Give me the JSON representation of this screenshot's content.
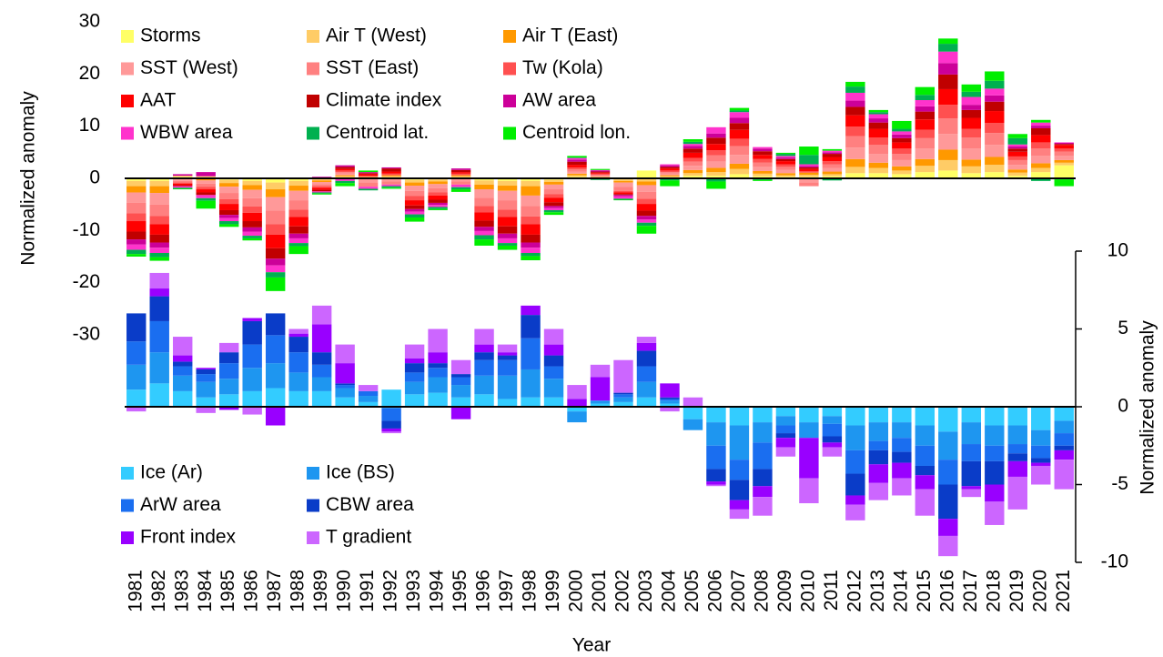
{
  "chart_data": {
    "type": "bar",
    "stacked": true,
    "x_label": "Year",
    "y_label": "Normalized anomaly",
    "y2_label": "Normalized anomaly",
    "categories": [
      "1981",
      "1982",
      "1983",
      "1984",
      "1985",
      "1986",
      "1987",
      "1988",
      "1989",
      "1990",
      "1991",
      "1992",
      "1993",
      "1994",
      "1995",
      "1996",
      "1997",
      "1998",
      "1999",
      "2000",
      "2001",
      "2002",
      "2003",
      "2004",
      "2005",
      "2006",
      "2007",
      "2008",
      "2009",
      "2010",
      "2011",
      "2012",
      "2013",
      "2014",
      "2015",
      "2016",
      "2017",
      "2018",
      "2019",
      "2020",
      "2021"
    ],
    "ylim": [
      -30,
      30
    ],
    "yticks": [
      -30,
      -20,
      -10,
      0,
      10,
      20,
      30
    ],
    "y2lim": [
      -10,
      10
    ],
    "y2ticks": [
      -10,
      -5,
      0,
      5,
      10
    ],
    "series": [
      {
        "name": "Storms",
        "color": "#ffff66",
        "values": [
          -0.5,
          -0.5,
          0.3,
          0.2,
          -0.3,
          -0.5,
          -0.8,
          -0.5,
          -0.2,
          0.2,
          0.1,
          0.2,
          -0.3,
          -0.2,
          0.2,
          -0.4,
          -0.5,
          -0.5,
          -0.3,
          0.3,
          0.1,
          -0.2,
          1.5,
          0.2,
          0.5,
          0.5,
          0.8,
          0.4,
          0.3,
          0.3,
          0.4,
          1.0,
          1.0,
          0.8,
          1.2,
          1.5,
          1.0,
          1.2,
          0.5,
          1.2,
          2.5
        ]
      },
      {
        "name": "Air T (West)",
        "color": "#ffcc66",
        "values": [
          -1,
          -1,
          0.2,
          0.2,
          -0.6,
          -0.8,
          -1.3,
          -0.9,
          -0.2,
          0.2,
          0.1,
          0.2,
          -0.5,
          -0.4,
          0.2,
          -0.8,
          -0.9,
          -1,
          -0.4,
          0.3,
          0.1,
          -0.3,
          -0.6,
          0.2,
          0.5,
          0.7,
          1,
          0.5,
          0.3,
          0.4,
          0.4,
          1.2,
          1,
          0.7,
          1.2,
          2,
          1.3,
          1.4,
          0.6,
          0.8,
          0.5
        ]
      },
      {
        "name": "Air T (East)",
        "color": "#ff9900",
        "values": [
          -1.2,
          -1.3,
          -0.2,
          -0.4,
          -0.7,
          -0.9,
          -1.5,
          -1,
          -0.3,
          0.2,
          0.1,
          0.2,
          -0.6,
          -0.5,
          0.2,
          -0.9,
          -1,
          -1.8,
          -0.5,
          0.3,
          0.1,
          -0.3,
          -0.7,
          0.2,
          0.6,
          0.8,
          1,
          0.5,
          0.4,
          0.4,
          0.5,
          1.5,
          1,
          0.8,
          1.3,
          2,
          1.3,
          1.5,
          0.6,
          0.9,
          0.5
        ]
      },
      {
        "name": "SST (West)",
        "color": "#ff9999",
        "values": [
          -2,
          -2.2,
          -0.3,
          -0.6,
          -1.2,
          -1.6,
          -2.6,
          -1.8,
          -0.4,
          0.3,
          -0.8,
          -0.6,
          -1,
          -0.8,
          -0.6,
          -1.6,
          -1.8,
          -2,
          -0.9,
          0.4,
          0.2,
          -0.8,
          -1.3,
          0.3,
          0.8,
          1.2,
          1.7,
          0.8,
          0.6,
          -0.8,
          0.7,
          2.2,
          1.7,
          1.2,
          2,
          3,
          2.1,
          2.3,
          0.9,
          1.4,
          0.8
        ]
      },
      {
        "name": "SST (East)",
        "color": "#ff8080",
        "values": [
          -2,
          -2.2,
          -0.3,
          -0.6,
          -1.2,
          -1.6,
          -2.6,
          -1.8,
          -0.4,
          0.3,
          -0.8,
          -0.6,
          -1,
          -0.8,
          -0.6,
          -1.6,
          -1.8,
          -2,
          -0.9,
          0.4,
          0.2,
          -0.8,
          -1.3,
          0.3,
          0.8,
          1.2,
          1.7,
          0.8,
          0.6,
          -0.7,
          0.7,
          2.2,
          1.7,
          1.2,
          2,
          3,
          2.1,
          2.3,
          0.9,
          1.4,
          0.8
        ]
      },
      {
        "name": "Tw (Kola)",
        "color": "#ff5050",
        "values": [
          -1.5,
          -1.6,
          -0.2,
          -0.5,
          -0.9,
          -1.2,
          -2,
          -1.4,
          -0.3,
          0.3,
          0.2,
          0.3,
          -0.8,
          -0.6,
          0.3,
          -1.2,
          -1.4,
          -1.5,
          -0.7,
          0.4,
          0.2,
          -0.3,
          -1,
          0.3,
          0.7,
          1,
          1.4,
          0.7,
          0.5,
          0.3,
          0.6,
          1.8,
          1.4,
          1,
          1.6,
          2.6,
          1.7,
          1.9,
          0.7,
          1.2,
          0.6
        ]
      },
      {
        "name": "AAT",
        "color": "#ff0000",
        "values": [
          -2,
          -2,
          -0.3,
          -0.6,
          -1.2,
          -1.6,
          -2.6,
          -1.8,
          -0.4,
          0.3,
          0.3,
          0.4,
          -1,
          -0.8,
          0.3,
          -1.6,
          -1.8,
          -2,
          -0.9,
          0.5,
          0.2,
          -0.3,
          -1.3,
          0.4,
          1,
          1.2,
          1.7,
          0.8,
          0.6,
          0.4,
          0.8,
          2.2,
          1.7,
          1.2,
          2,
          3,
          2.1,
          2.3,
          0.9,
          1.4,
          0.7
        ]
      },
      {
        "name": "Climate index",
        "color": "#c00000",
        "values": [
          -1.5,
          -1.5,
          -0.2,
          -0.5,
          -0.9,
          -1.2,
          -2,
          -1.4,
          -0.3,
          0.4,
          0.2,
          0.6,
          -0.7,
          -0.6,
          0.4,
          -1.2,
          -1.4,
          -1.5,
          -0.7,
          0.6,
          0.2,
          -0.2,
          -1,
          0.3,
          0.8,
          1.2,
          1.3,
          0.7,
          0.4,
          0.3,
          0.6,
          1.6,
          1.2,
          0.8,
          1.5,
          2.8,
          1.5,
          1.8,
          0.6,
          1.3,
          0.2
        ]
      },
      {
        "name": "AW area",
        "color": "#cc0099",
        "values": [
          -1,
          -1,
          0.3,
          0.8,
          -0.6,
          -0.8,
          -1.3,
          -0.9,
          0.3,
          0.3,
          0.2,
          0.2,
          -0.5,
          -0.4,
          0.3,
          -0.8,
          -0.9,
          -1,
          -0.4,
          0.4,
          0.2,
          -0.2,
          -0.7,
          0.3,
          0.5,
          0.8,
          1,
          0.5,
          0.3,
          0.3,
          0.3,
          1.2,
          0.8,
          0.7,
          1,
          2.2,
          1,
          1.2,
          0.4,
          0.5,
          0.2
        ]
      },
      {
        "name": "WBW area",
        "color": "#ff33cc",
        "values": [
          -1,
          -1,
          -0.3,
          -0.6,
          -0.6,
          -0.8,
          -1.3,
          -0.9,
          -0.2,
          -0.5,
          -0.4,
          -0.3,
          -0.5,
          -0.4,
          -0.5,
          -0.8,
          -0.9,
          -1,
          -0.4,
          0.3,
          0.1,
          -0.5,
          -0.6,
          0.2,
          0.4,
          1.2,
          1.1,
          0.3,
          0.3,
          0.3,
          0.3,
          1.5,
          0.8,
          0.6,
          1.2,
          2.2,
          1.5,
          1.3,
          0.4,
          0.6,
          0.1
        ]
      },
      {
        "name": "Centroid lat.",
        "color": "#00b050",
        "values": [
          -0.8,
          -0.8,
          -0.2,
          -0.5,
          -0.6,
          -0.5,
          -1,
          -0.6,
          -0.2,
          -0.4,
          -0.3,
          -0.3,
          -0.6,
          -0.4,
          -0.4,
          -0.8,
          -0.5,
          -0.6,
          -0.4,
          0.1,
          -0.3,
          -0.2,
          -0.6,
          -0.4,
          0.4,
          -0.6,
          0.3,
          -0.3,
          0.4,
          1.8,
          -0.4,
          1.2,
          0.4,
          0.5,
          1,
          1.5,
          1,
          1.5,
          1.2,
          -0.5,
          -0.2
        ]
      },
      {
        "name": "Centroid lon.",
        "color": "#00ee00",
        "values": [
          -0.5,
          -0.7,
          -0.1,
          -1.5,
          -0.5,
          -0.4,
          -2.6,
          -1.5,
          -0.2,
          -0.6,
          0.3,
          -0.2,
          -0.8,
          -0.2,
          -0.5,
          -1.2,
          -0.8,
          -0.8,
          -0.5,
          0.3,
          0.2,
          -0.1,
          -1.5,
          -1.1,
          0.5,
          -1.4,
          0.5,
          -0.2,
          0.2,
          1.6,
          0.3,
          0.9,
          0.4,
          1.5,
          1.5,
          1,
          1.4,
          1.8,
          0.8,
          0.5,
          -1.3
        ]
      },
      {
        "name": "Ice (Ar)",
        "color": "#33ccff",
        "axis": "y2",
        "values": [
          1.1,
          1.5,
          1,
          0.6,
          0.8,
          1,
          1.2,
          1,
          1,
          0.6,
          0.3,
          1.1,
          0.8,
          0.9,
          0.6,
          0.8,
          0.5,
          0.6,
          0.6,
          -0.3,
          0.2,
          0.3,
          0.6,
          0.2,
          -0.8,
          -1,
          -1.2,
          -1,
          -0.6,
          -1,
          -0.6,
          -1.2,
          -1,
          -1,
          -1.2,
          -1.6,
          -1,
          -1.2,
          -1.2,
          -1.5,
          -0.9
        ]
      },
      {
        "name": "Ice (BS)",
        "color": "#1e96f0",
        "axis": "y2",
        "values": [
          1.6,
          2,
          1,
          1,
          1,
          1.5,
          1.6,
          1.2,
          0.9,
          0.6,
          0.4,
          -0.1,
          0.8,
          1,
          0.8,
          1.2,
          1.5,
          1.8,
          1.2,
          -0.7,
          0.2,
          0.3,
          1,
          0.2,
          -0.7,
          -1.5,
          -2.2,
          -1.3,
          -0.6,
          -1,
          -0.5,
          -1.6,
          -1.2,
          -1,
          -1.3,
          -1.8,
          -1.4,
          -1.3,
          -1.2,
          -1,
          -0.8
        ]
      },
      {
        "name": "ArW area",
        "color": "#1a6ef0",
        "axis": "y2",
        "values": [
          1.5,
          2,
          0.6,
          0.5,
          1,
          1.5,
          1.8,
          1.3,
          0.8,
          0.2,
          0.3,
          -0.8,
          0.6,
          0.6,
          0.5,
          1,
          1,
          2,
          0.8,
          0,
          0,
          0.2,
          1,
          0.1,
          0,
          -1.5,
          -1.3,
          -1.7,
          -0.5,
          0,
          -0.8,
          -1.5,
          -0.6,
          -0.9,
          -1.3,
          -1.6,
          -1.1,
          -1,
          -0.6,
          -0.8,
          -0.8
        ]
      },
      {
        "name": "CBW area",
        "color": "#0a3cc8",
        "axis": "y2",
        "values": [
          1.8,
          1.6,
          0.3,
          0.3,
          0.7,
          1.5,
          1.4,
          1,
          0.8,
          0.1,
          0,
          -0.5,
          0.6,
          0.3,
          0.2,
          0.5,
          0.3,
          1.5,
          0.7,
          0,
          0,
          0.1,
          1,
          0.1,
          0,
          -0.8,
          -1.3,
          -1.1,
          -0.3,
          0,
          -0.4,
          -1.4,
          -0.9,
          -0.7,
          -0.6,
          -2.2,
          -1.6,
          -1.5,
          -0.5,
          -0.3,
          -0.3
        ]
      },
      {
        "name": "Front index",
        "color": "#9900ff",
        "axis": "y2",
        "values": [
          0,
          0.5,
          0.4,
          0.1,
          -0.2,
          0.2,
          -1.2,
          0.2,
          1.8,
          1.3,
          0,
          -0.2,
          0.3,
          0.7,
          -0.8,
          0.5,
          0.2,
          0.6,
          0.7,
          0.5,
          1.5,
          0,
          0.5,
          0.9,
          0,
          -0.2,
          -0.6,
          -0.7,
          -0.6,
          -2.6,
          -0.3,
          -0.6,
          -1.2,
          -1,
          -0.9,
          -1.1,
          -0.2,
          -1.1,
          -1,
          -0.2,
          -0.6
        ]
      },
      {
        "name": "T gradient",
        "color": "#cc66ff",
        "axis": "y2",
        "values": [
          -0.3,
          1,
          1.2,
          -0.4,
          0.6,
          -0.5,
          0,
          0.3,
          1.2,
          1.2,
          0.4,
          -0.1,
          0.9,
          1.5,
          0.9,
          1,
          0.5,
          0,
          1,
          0.9,
          0.8,
          2.1,
          0.4,
          -0.3,
          0.6,
          -0.1,
          -0.6,
          -1.2,
          -0.6,
          -1.6,
          -0.6,
          -1,
          -1.1,
          -1.1,
          -1.7,
          -1.3,
          -0.5,
          -1.5,
          -2.1,
          -1.2,
          -1.9
        ]
      }
    ]
  }
}
